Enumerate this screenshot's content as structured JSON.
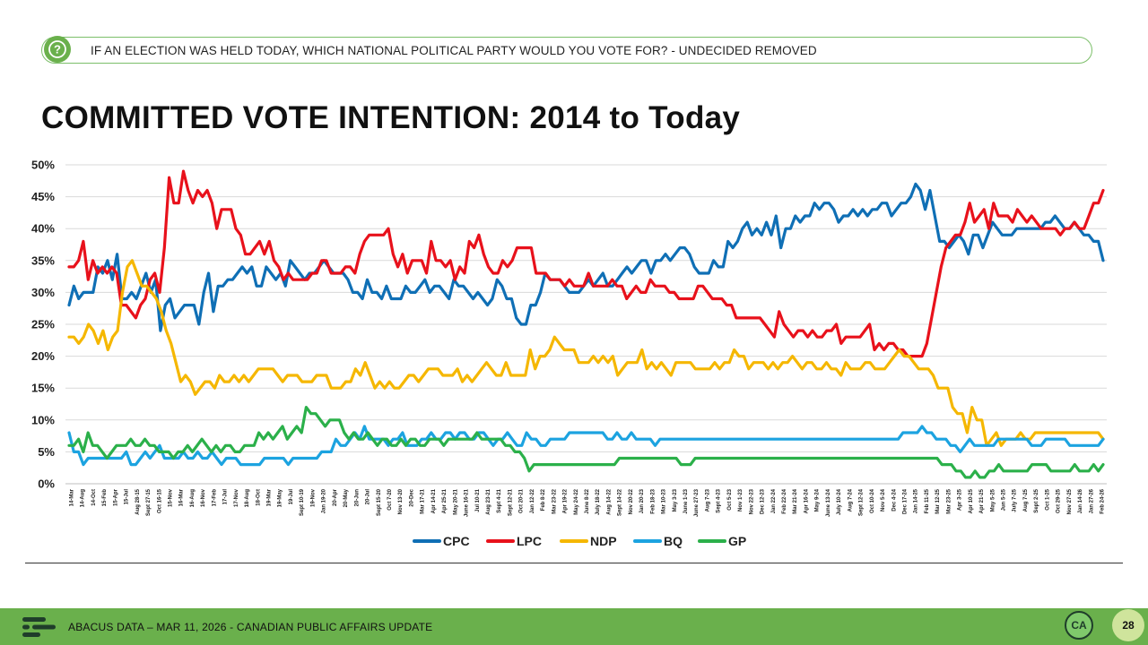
{
  "question": {
    "icon": "question-icon",
    "text": "IF AN ELECTION WAS HELD TODAY, WHICH NATIONAL POLITICAL PARTY WOULD YOU VOTE FOR? - UNDECIDED REMOVED"
  },
  "footer": {
    "text": "ABACUS DATA – MAR 11, 2026 - CANADIAN PUBLIC AFFAIRS UPDATE",
    "badge": "CA",
    "page_number": "28"
  },
  "chart_data": {
    "type": "line",
    "title": "COMMITTED VOTE INTENTION: 2014 to Today",
    "xlabel": "",
    "ylabel": "",
    "ylim": [
      0,
      50
    ],
    "yticks": [
      "0%",
      "5%",
      "10%",
      "15%",
      "20%",
      "25%",
      "30%",
      "35%",
      "40%",
      "45%",
      "50%"
    ],
    "grid": true,
    "legend": "bottom",
    "x_tick_labels": [
      "14-Mar",
      "14-Aug",
      "14-Oct",
      "15-Feb",
      "15-Apr",
      "15-Jul",
      "Aug 28-15",
      "Sept 27-15",
      "Oct 16-15",
      "15-Nov",
      "16-Mar",
      "16-Aug",
      "16-Nov",
      "17-Feb",
      "17-Jul",
      "17-Nov",
      "18-Aug",
      "18-Oct",
      "19-Mar",
      "19-May",
      "19-Jul",
      "Sept 10-19",
      "19-Nov",
      "Jan 19-20",
      "20-Apr",
      "20-May",
      "20-Jun",
      "20-Jul",
      "Sept 15-20",
      "Oct 7-20",
      "Nov 13-20",
      "20-Dec",
      "Mar 17-21",
      "Apr 14-21",
      "Apr 25-21",
      "May 20-21",
      "June 16-21",
      "Jul 10-21",
      "Aug 23-21",
      "Sept 4-21",
      "Sept 12-21",
      "Oct 20-21",
      "Jan 12-22",
      "Feb 8-22",
      "Mar 23-22",
      "Apr 19-22",
      "May 24-22",
      "June 8-22",
      "July 18-22",
      "Aug 14-22",
      "Sept 14-22",
      "Nov 20-22",
      "Jan 20-23",
      "Feb 18-23",
      "Mar 10-23",
      "May 3-23",
      "June 1-23",
      "June 27-23",
      "Aug 7-23",
      "Sept 4-23",
      "Oct 5-23",
      "Nov 1-23",
      "Nov 22-23",
      "Dec 12-23",
      "Jan 22-24",
      "Feb 22-24",
      "Mar 21-24",
      "Apr 16-24",
      "May 9-24",
      "June 13-24",
      "July 10-24",
      "Aug 7-24",
      "Sept 12-24",
      "Oct 10-24",
      "Nov 5-24",
      "Dec 4-24",
      "Dec 17-24",
      "Jan 14-25",
      "Feb 11-25",
      "Mar 12-25",
      "Mar 23-25",
      "Apr 3-25",
      "Apr 10-25",
      "Apr 21-25",
      "May 5-25",
      "Jun 5-25",
      "July 7-25",
      "Aug 7-25",
      "Sept 2-25",
      "Oct 1-25",
      "Oct 29-25",
      "Nov 27-25",
      "Jan 14-26",
      "Jan 27-26",
      "Feb 24-26"
    ],
    "series": [
      {
        "name": "CPC",
        "color": "#0f6fb5",
        "values": [
          28,
          31,
          29,
          30,
          30,
          30,
          34,
          33,
          35,
          32,
          36,
          29,
          29,
          30,
          29,
          31,
          33,
          30,
          32,
          24,
          28,
          29,
          26,
          27,
          28,
          28,
          28,
          25,
          30,
          33,
          27,
          31,
          31,
          32,
          32,
          33,
          34,
          33,
          34,
          31,
          31,
          34,
          33,
          32,
          33,
          31,
          35,
          34,
          33,
          32,
          33,
          33,
          34,
          35,
          34,
          33,
          33,
          33,
          32,
          30,
          30,
          29,
          32,
          30,
          30,
          29,
          31,
          29,
          29,
          29,
          31,
          30,
          30,
          31,
          32,
          30,
          31,
          31,
          30,
          29,
          32,
          31,
          31,
          30,
          29,
          30,
          29,
          28,
          29,
          32,
          31,
          29,
          29,
          26,
          25,
          25,
          28,
          28,
          30,
          33,
          32,
          32,
          32,
          31,
          30,
          30,
          30,
          31,
          32,
          31,
          32,
          33,
          31,
          31,
          32,
          33,
          34,
          33,
          34,
          35,
          35,
          33,
          35,
          35,
          36,
          35,
          36,
          37,
          37,
          36,
          34,
          33,
          33,
          33,
          35,
          34,
          34,
          38,
          37,
          38,
          40,
          41,
          39,
          40,
          39,
          41,
          39,
          42,
          37,
          40,
          40,
          42,
          41,
          42,
          42,
          44,
          43,
          44,
          44,
          43,
          41,
          42,
          42,
          43,
          42,
          43,
          42,
          43,
          43,
          44,
          44,
          42,
          43,
          44,
          44,
          45,
          47,
          46,
          43,
          46,
          42,
          38,
          38,
          37,
          38,
          39,
          38,
          36,
          39,
          39,
          37,
          39,
          41,
          40,
          39,
          39,
          39,
          40,
          40,
          40,
          40,
          40,
          40,
          41,
          41,
          42,
          41,
          40,
          40,
          41,
          40,
          39,
          39,
          38,
          38,
          35
        ]
      },
      {
        "name": "LPC",
        "color": "#e8111b",
        "values": [
          34,
          34,
          35,
          38,
          32,
          35,
          33,
          34,
          33,
          34,
          33,
          28,
          28,
          27,
          26,
          28,
          29,
          32,
          33,
          30,
          37,
          48,
          44,
          44,
          49,
          46,
          44,
          46,
          45,
          46,
          44,
          40,
          43,
          43,
          43,
          40,
          39,
          36,
          36,
          37,
          38,
          36,
          38,
          35,
          34,
          32,
          33,
          32,
          32,
          32,
          32,
          33,
          33,
          35,
          35,
          33,
          33,
          33,
          34,
          34,
          33,
          36,
          38,
          39,
          39,
          39,
          39,
          40,
          36,
          34,
          36,
          33,
          35,
          35,
          35,
          33,
          38,
          35,
          35,
          34,
          35,
          32,
          34,
          33,
          38,
          37,
          39,
          36,
          34,
          33,
          33,
          35,
          34,
          35,
          37,
          37,
          37,
          37,
          33,
          33,
          33,
          32,
          32,
          32,
          31,
          32,
          31,
          31,
          31,
          33,
          31,
          31,
          31,
          31,
          32,
          31,
          31,
          29,
          30,
          31,
          30,
          30,
          32,
          31,
          31,
          31,
          30,
          30,
          29,
          29,
          29,
          29,
          31,
          31,
          30,
          29,
          29,
          29,
          28,
          28,
          26,
          26,
          26,
          26,
          26,
          26,
          25,
          24,
          23,
          27,
          25,
          24,
          23,
          24,
          24,
          23,
          24,
          23,
          23,
          24,
          24,
          25,
          22,
          23,
          23,
          23,
          23,
          24,
          25,
          21,
          22,
          21,
          22,
          22,
          21,
          21,
          20,
          20,
          20,
          20,
          22,
          26,
          30,
          34,
          37,
          38,
          39,
          39,
          41,
          44,
          41,
          42,
          43,
          40,
          44,
          42,
          42,
          42,
          41,
          43,
          42,
          41,
          42,
          41,
          40,
          40,
          40,
          40,
          39,
          40,
          40,
          41,
          40,
          40,
          42,
          44,
          44,
          46
        ]
      },
      {
        "name": "NDP",
        "color": "#f5b700",
        "values": [
          23,
          23,
          22,
          23,
          25,
          24,
          22,
          24,
          21,
          23,
          24,
          30,
          34,
          35,
          33,
          31,
          31,
          30,
          29,
          27,
          24,
          22,
          19,
          16,
          17,
          16,
          14,
          15,
          16,
          16,
          15,
          17,
          16,
          16,
          17,
          16,
          17,
          16,
          17,
          18,
          18,
          18,
          18,
          17,
          16,
          17,
          17,
          17,
          16,
          16,
          16,
          17,
          17,
          17,
          15,
          15,
          15,
          16,
          16,
          18,
          17,
          19,
          17,
          15,
          16,
          15,
          16,
          15,
          15,
          16,
          17,
          17,
          16,
          17,
          18,
          18,
          18,
          17,
          17,
          17,
          18,
          16,
          17,
          16,
          17,
          18,
          19,
          18,
          17,
          17,
          19,
          17,
          17,
          17,
          17,
          21,
          18,
          20,
          20,
          21,
          23,
          22,
          21,
          21,
          21,
          19,
          19,
          19,
          20,
          19,
          20,
          19,
          20,
          17,
          18,
          19,
          19,
          19,
          21,
          18,
          19,
          18,
          19,
          18,
          17,
          19,
          19,
          19,
          19,
          18,
          18,
          18,
          18,
          19,
          18,
          19,
          19,
          21,
          20,
          20,
          18,
          19,
          19,
          19,
          18,
          19,
          18,
          19,
          19,
          20,
          19,
          18,
          19,
          19,
          18,
          18,
          19,
          18,
          18,
          17,
          19,
          18,
          18,
          18,
          19,
          19,
          18,
          18,
          18,
          19,
          20,
          21,
          20,
          20,
          19,
          18,
          18,
          18,
          17,
          15,
          15,
          15,
          12,
          11,
          11,
          8,
          12,
          10,
          10,
          6,
          7,
          8,
          6,
          7,
          7,
          7,
          8,
          7,
          7,
          8,
          8,
          8,
          8,
          8,
          8,
          8,
          8,
          8,
          8,
          8,
          8,
          8,
          8,
          7
        ]
      },
      {
        "name": "BQ",
        "color": "#1ca3e0",
        "values": [
          8,
          5,
          5,
          3,
          4,
          4,
          4,
          4,
          4,
          4,
          4,
          4,
          5,
          3,
          3,
          4,
          5,
          4,
          5,
          6,
          4,
          4,
          4,
          4,
          5,
          4,
          4,
          5,
          4,
          4,
          5,
          4,
          3,
          4,
          4,
          4,
          3,
          3,
          3,
          3,
          3,
          4,
          4,
          4,
          4,
          4,
          3,
          4,
          4,
          4,
          4,
          4,
          4,
          5,
          5,
          5,
          7,
          6,
          6,
          7,
          8,
          7,
          9,
          7,
          7,
          7,
          7,
          6,
          7,
          7,
          8,
          6,
          6,
          6,
          7,
          7,
          8,
          7,
          7,
          8,
          8,
          7,
          8,
          8,
          7,
          7,
          8,
          8,
          7,
          6,
          7,
          7,
          8,
          7,
          6,
          6,
          8,
          7,
          7,
          6,
          6,
          7,
          7,
          7,
          7,
          8,
          8,
          8,
          8,
          8,
          8,
          8,
          8,
          7,
          7,
          8,
          7,
          7,
          8,
          7,
          7,
          7,
          7,
          6,
          7,
          7,
          7,
          7,
          7,
          7,
          7,
          7,
          7,
          7,
          7,
          7,
          7,
          7,
          7,
          7,
          7,
          7,
          7,
          7,
          7,
          7,
          7,
          7,
          7,
          7,
          7,
          7,
          7,
          7,
          7,
          7,
          7,
          7,
          7,
          7,
          7,
          7,
          7,
          7,
          7,
          7,
          7,
          7,
          7,
          7,
          7,
          7,
          7,
          7,
          7,
          8,
          8,
          8,
          8,
          9,
          8,
          8,
          7,
          7,
          7,
          6,
          6,
          5,
          6,
          7,
          6,
          6,
          6,
          6,
          6,
          7,
          7,
          7,
          7,
          7,
          7,
          7,
          6,
          6,
          6,
          7,
          7,
          7,
          7,
          7,
          6,
          6,
          6,
          6,
          6,
          6,
          6,
          7
        ]
      },
      {
        "name": "GP",
        "color": "#2bb04a",
        "values": [
          6,
          6,
          7,
          5,
          8,
          6,
          6,
          5,
          4,
          5,
          6,
          6,
          6,
          7,
          6,
          6,
          7,
          6,
          6,
          5,
          5,
          5,
          4,
          5,
          5,
          6,
          5,
          6,
          7,
          6,
          5,
          6,
          5,
          6,
          6,
          5,
          5,
          6,
          6,
          6,
          8,
          7,
          8,
          7,
          8,
          9,
          7,
          8,
          9,
          8,
          12,
          11,
          11,
          10,
          9,
          10,
          10,
          10,
          8,
          7,
          8,
          7,
          7,
          8,
          7,
          6,
          7,
          7,
          6,
          6,
          7,
          6,
          7,
          7,
          6,
          6,
          7,
          7,
          7,
          6,
          7,
          7,
          7,
          7,
          7,
          7,
          8,
          7,
          7,
          7,
          7,
          7,
          6,
          6,
          5,
          5,
          4,
          2,
          3,
          3,
          3,
          3,
          3,
          3,
          3,
          3,
          3,
          3,
          3,
          3,
          3,
          3,
          3,
          3,
          3,
          3,
          4,
          4,
          4,
          4,
          4,
          4,
          4,
          4,
          4,
          4,
          4,
          4,
          4,
          3,
          3,
          3,
          4,
          4,
          4,
          4,
          4,
          4,
          4,
          4,
          4,
          4,
          4,
          4,
          4,
          4,
          4,
          4,
          4,
          4,
          4,
          4,
          4,
          4,
          4,
          4,
          4,
          4,
          4,
          4,
          4,
          4,
          4,
          4,
          4,
          4,
          4,
          4,
          4,
          4,
          4,
          4,
          4,
          4,
          4,
          4,
          4,
          4,
          4,
          4,
          4,
          4,
          4,
          4,
          3,
          3,
          3,
          2,
          2,
          1,
          1,
          2,
          1,
          1,
          2,
          2,
          3,
          2,
          2,
          2,
          2,
          2,
          2,
          3,
          3,
          3,
          3,
          2,
          2,
          2,
          2,
          2,
          3,
          2,
          2,
          2,
          3,
          2,
          3
        ]
      }
    ]
  }
}
